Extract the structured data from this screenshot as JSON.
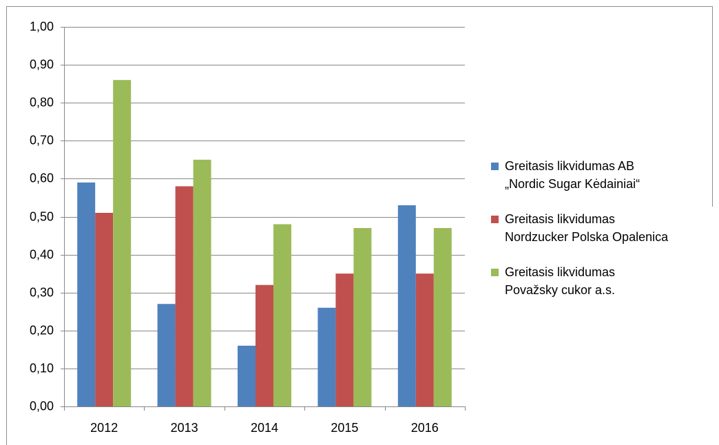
{
  "chart_data": {
    "type": "bar",
    "categories": [
      "2012",
      "2013",
      "2014",
      "2015",
      "2016"
    ],
    "series": [
      {
        "name": "Greitasis likvidumas AB „Nordic Sugar Kėdainiai“",
        "color": "#4f81bd",
        "values": [
          0.59,
          0.27,
          0.16,
          0.26,
          0.53
        ]
      },
      {
        "name": "Greitasis likvidumas Nordzucker Polska Opalenica",
        "color": "#c0504d",
        "values": [
          0.51,
          0.58,
          0.32,
          0.35,
          0.35
        ]
      },
      {
        "name": "Greitasis likvidumas Považsky cukor a.s.",
        "color": "#9bbb59",
        "values": [
          0.86,
          0.65,
          0.48,
          0.47,
          0.47
        ]
      }
    ],
    "ylim": [
      0,
      1
    ],
    "yticks": [
      {
        "value": 0,
        "label": "0,00"
      },
      {
        "value": 0.1,
        "label": "0,10"
      },
      {
        "value": 0.2,
        "label": "0,20"
      },
      {
        "value": 0.3,
        "label": "0,30"
      },
      {
        "value": 0.4,
        "label": "0,40"
      },
      {
        "value": 0.5,
        "label": "0,50"
      },
      {
        "value": 0.6,
        "label": "0,60"
      },
      {
        "value": 0.7,
        "label": "0,70"
      },
      {
        "value": 0.8,
        "label": "0,80"
      },
      {
        "value": 0.9,
        "label": "0,90"
      },
      {
        "value": 1,
        "label": "1,00"
      }
    ],
    "grid": true,
    "legend": "right"
  }
}
